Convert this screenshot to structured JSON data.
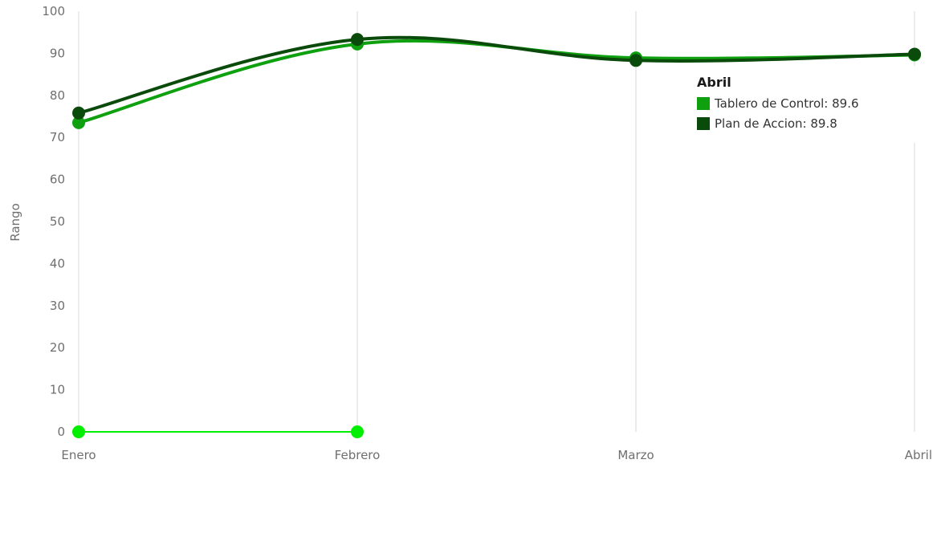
{
  "chart_data": {
    "type": "line",
    "categories": [
      "Enero",
      "Febrero",
      "Marzo",
      "Abril"
    ],
    "ylabel": "Rango",
    "ylim": [
      0,
      100
    ],
    "yticks": [
      0,
      10,
      20,
      30,
      40,
      50,
      60,
      70,
      80,
      90,
      100
    ],
    "grid": "vertical",
    "series": [
      {
        "name": "Tablero de Control",
        "color": "#0fa00f",
        "values": [
          73.5,
          92.2,
          88.9,
          89.6
        ]
      },
      {
        "name": "Plan de Accion",
        "color": "#0a4a0a",
        "values": [
          75.8,
          93.3,
          88.3,
          89.8
        ]
      },
      {
        "name": "",
        "color": "#00ee00",
        "values": [
          0,
          0,
          null,
          null
        ]
      }
    ],
    "tooltip": {
      "title": "Abril",
      "items": [
        {
          "label": "Tablero de Control: 89.6",
          "color": "#0fa00f"
        },
        {
          "label": "Plan de Accion: 89.8",
          "color": "#0a4a0a"
        }
      ]
    }
  }
}
